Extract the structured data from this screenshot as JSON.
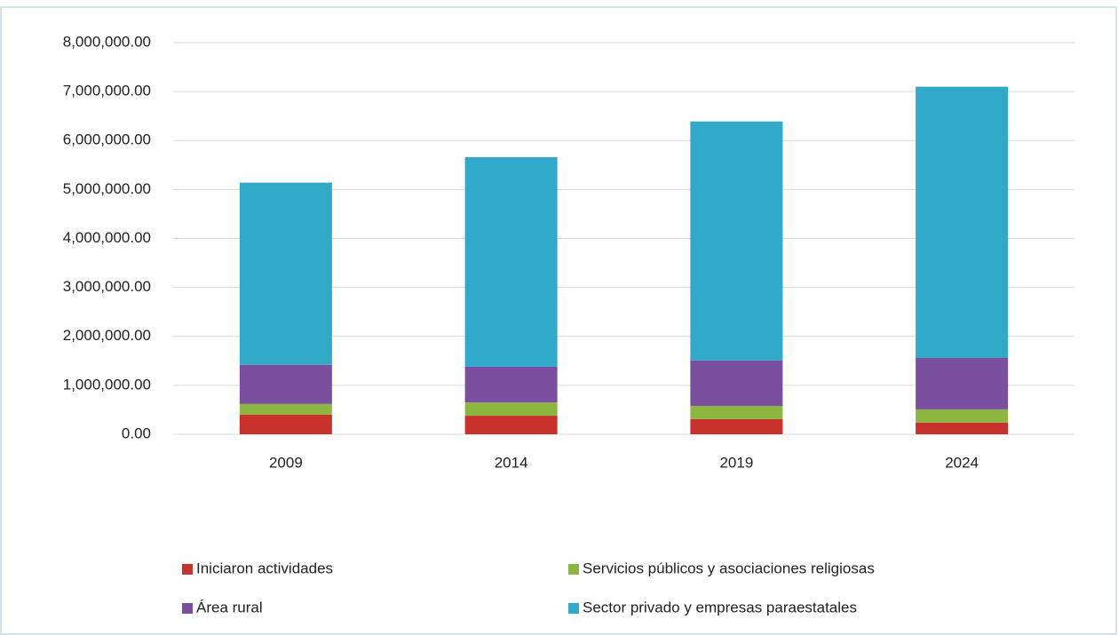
{
  "chart_data": {
    "type": "stacked_bar",
    "categories": [
      "2009",
      "2014",
      "2019",
      "2024"
    ],
    "series": [
      {
        "name": "Iniciaron actividades",
        "color": "#c9312c",
        "values": [
          400000,
          380000,
          310000,
          240000
        ]
      },
      {
        "name": "Servicios públicos y asociaciones religiosas",
        "color": "#8db640",
        "values": [
          220000,
          270000,
          270000,
          270000
        ]
      },
      {
        "name": "Área rural",
        "color": "#7b4fa0",
        "values": [
          800000,
          730000,
          930000,
          1050000
        ]
      },
      {
        "name": "Sector privado y empresas paraestatales",
        "color": "#31a9c9",
        "values": [
          3720000,
          4280000,
          4880000,
          5540000
        ]
      }
    ],
    "ylim": [
      0,
      8000000
    ],
    "yticks": [
      {
        "value": 0,
        "label": "0.00"
      },
      {
        "value": 1000000,
        "label": "1,000,000.00"
      },
      {
        "value": 2000000,
        "label": "2,000,000.00"
      },
      {
        "value": 3000000,
        "label": "3,000,000.00"
      },
      {
        "value": 4000000,
        "label": "4,000,000.00"
      },
      {
        "value": 5000000,
        "label": "5,000,000.00"
      },
      {
        "value": 6000000,
        "label": "6,000,000.00"
      },
      {
        "value": 7000000,
        "label": "7,000,000.00"
      },
      {
        "value": 8000000,
        "label": "8,000,000.00"
      }
    ],
    "grid": true,
    "legend": "bottom"
  }
}
